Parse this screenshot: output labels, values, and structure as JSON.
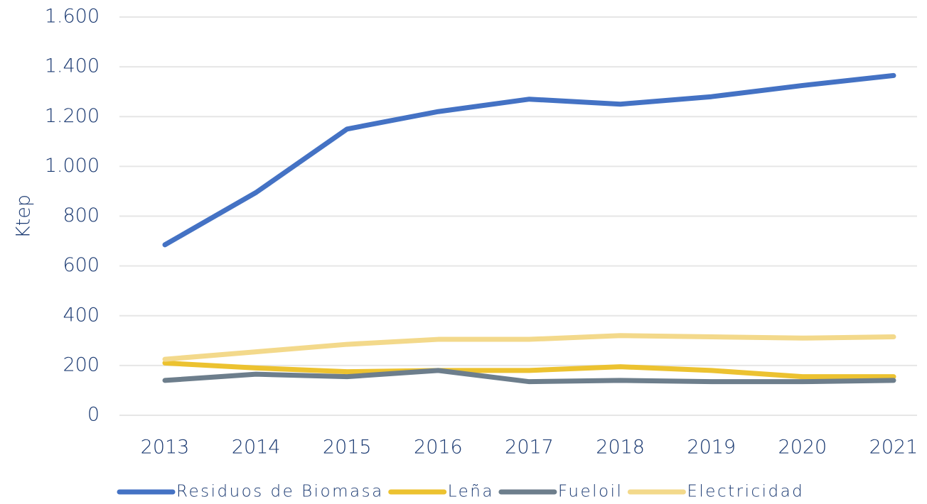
{
  "chart_data": {
    "type": "line",
    "y_label": "Ktep",
    "categories": [
      "2013",
      "2014",
      "2015",
      "2016",
      "2017",
      "2018",
      "2019",
      "2020",
      "2021"
    ],
    "series": [
      {
        "name": "Residuos de Biomasa",
        "color": "#4472c4",
        "values": [
          685,
          895,
          1150,
          1220,
          1270,
          1250,
          1280,
          1325,
          1365
        ]
      },
      {
        "name": "Leña",
        "color": "#ecc230",
        "values": [
          210,
          190,
          175,
          180,
          180,
          195,
          180,
          155,
          155
        ]
      },
      {
        "name": "Fueloil",
        "color": "#6d7e8c",
        "values": [
          140,
          165,
          155,
          180,
          135,
          140,
          135,
          135,
          140
        ]
      },
      {
        "name": "Electricidad",
        "color": "#f3d98b",
        "values": [
          225,
          255,
          285,
          305,
          305,
          320,
          315,
          310,
          315
        ]
      }
    ],
    "ylim": [
      0,
      1600
    ],
    "yticks": [
      0,
      200,
      400,
      600,
      800,
      {
        "value": 1000,
        "label": "1.000"
      },
      {
        "value": 1200,
        "label": "1.200"
      },
      {
        "value": 1400,
        "label": "1.400"
      },
      {
        "value": 1600,
        "label": "1.600"
      }
    ],
    "grid": true,
    "legend": "bottom"
  }
}
